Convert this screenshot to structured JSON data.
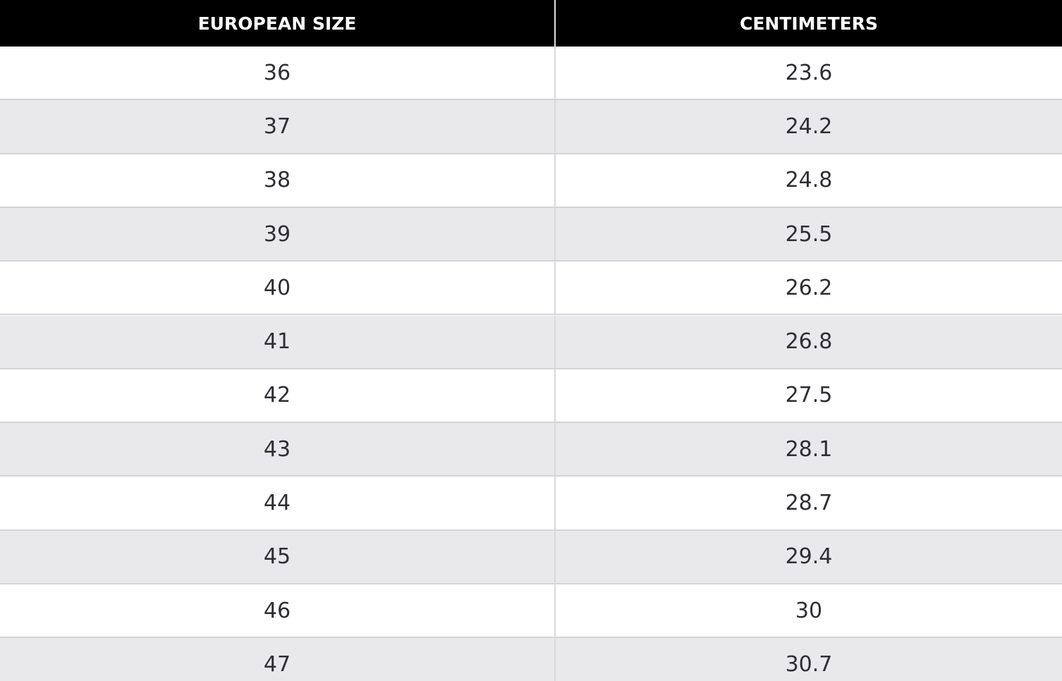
{
  "table": {
    "headers": [
      "EUROPEAN SIZE",
      "CENTIMETERS"
    ],
    "rows": [
      [
        36,
        23.6
      ],
      [
        37,
        24.2
      ],
      [
        38,
        24.8
      ],
      [
        39,
        25.5
      ],
      [
        40,
        26.2
      ],
      [
        41,
        26.8
      ],
      [
        42,
        27.5
      ],
      [
        43,
        28.1
      ],
      [
        44,
        28.7
      ],
      [
        45,
        29.4
      ],
      [
        46,
        30
      ],
      [
        47,
        30.7
      ]
    ]
  }
}
